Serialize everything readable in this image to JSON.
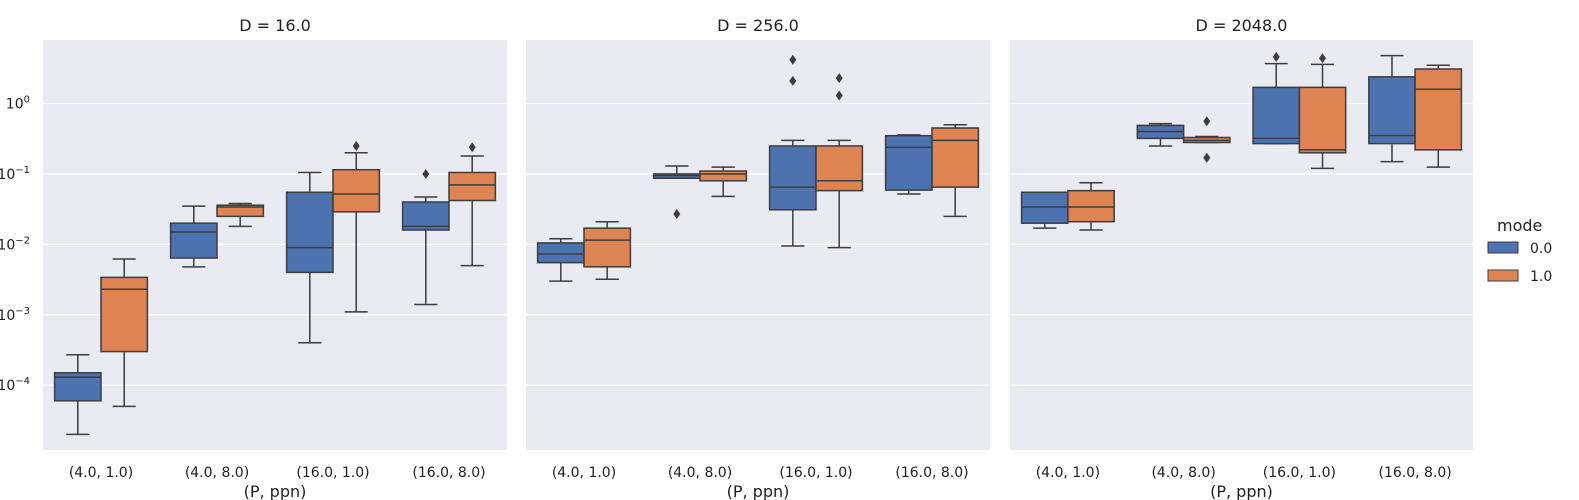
{
  "chart_data": [
    {
      "type": "box",
      "title": "D = 16.0",
      "xlabel": "(P, ppn)",
      "ylabel": "",
      "yscale": "log",
      "ylim": [
        1.2e-05,
        8
      ],
      "grid": true,
      "categories": [
        "(4.0, 1.0)",
        "(4.0, 8.0)",
        "(16.0, 1.0)",
        "(16.0, 8.0)"
      ],
      "yticks": [
        {
          "value": 0.0001,
          "base": "10",
          "exp": "−4"
        },
        {
          "value": 0.001,
          "base": "10",
          "exp": "−3"
        },
        {
          "value": 0.01,
          "base": "10",
          "exp": "−2"
        },
        {
          "value": 0.1,
          "base": "10",
          "exp": "−1"
        },
        {
          "value": 1,
          "base": "10",
          "exp": "0"
        }
      ],
      "series": [
        {
          "name": "0.0",
          "boxes": [
            {
              "lw": 2e-05,
              "q1": 6e-05,
              "med": 0.00013,
              "q3": 0.00015,
              "uw": 0.00027,
              "fliers": []
            },
            {
              "lw": 0.0048,
              "q1": 0.0064,
              "med": 0.015,
              "q3": 0.02,
              "uw": 0.035,
              "fliers": []
            },
            {
              "lw": 0.0004,
              "q1": 0.004,
              "med": 0.009,
              "q3": 0.055,
              "uw": 0.105,
              "fliers": []
            },
            {
              "lw": 0.0014,
              "q1": 0.016,
              "med": 0.018,
              "q3": 0.04,
              "uw": 0.047,
              "fliers": [
                0.1
              ]
            }
          ]
        },
        {
          "name": "1.0",
          "boxes": [
            {
              "lw": 5e-05,
              "q1": 0.0003,
              "med": 0.0023,
              "q3": 0.0034,
              "uw": 0.0062,
              "fliers": []
            },
            {
              "lw": 0.018,
              "q1": 0.025,
              "med": 0.034,
              "q3": 0.036,
              "uw": 0.038,
              "fliers": []
            },
            {
              "lw": 0.0011,
              "q1": 0.029,
              "med": 0.052,
              "q3": 0.115,
              "uw": 0.2,
              "fliers": [
                0.25
              ]
            },
            {
              "lw": 0.005,
              "q1": 0.042,
              "med": 0.07,
              "q3": 0.105,
              "uw": 0.18,
              "fliers": [
                0.24
              ]
            }
          ]
        }
      ]
    },
    {
      "type": "box",
      "title": "D = 256.0",
      "xlabel": "(P, ppn)",
      "ylabel": "",
      "yscale": "log",
      "ylim": [
        1.2e-05,
        8
      ],
      "grid": true,
      "categories": [
        "(4.0, 1.0)",
        "(4.0, 8.0)",
        "(16.0, 1.0)",
        "(16.0, 8.0)"
      ],
      "series": [
        {
          "name": "0.0",
          "boxes": [
            {
              "lw": 0.003,
              "q1": 0.0055,
              "med": 0.0073,
              "q3": 0.0105,
              "uw": 0.012,
              "fliers": []
            },
            {
              "lw": 0.087,
              "q1": 0.087,
              "med": 0.095,
              "q3": 0.1,
              "uw": 0.13,
              "fliers": [
                0.027
              ]
            },
            {
              "lw": 0.0095,
              "q1": 0.031,
              "med": 0.065,
              "q3": 0.25,
              "uw": 0.3,
              "fliers": [
                2.1,
                4.2
              ]
            },
            {
              "lw": 0.052,
              "q1": 0.059,
              "med": 0.24,
              "q3": 0.35,
              "uw": 0.36,
              "fliers": []
            }
          ]
        },
        {
          "name": "1.0",
          "boxes": [
            {
              "lw": 0.0032,
              "q1": 0.0048,
              "med": 0.0115,
              "q3": 0.017,
              "uw": 0.021,
              "fliers": []
            },
            {
              "lw": 0.048,
              "q1": 0.08,
              "med": 0.1,
              "q3": 0.11,
              "uw": 0.125,
              "fliers": []
            },
            {
              "lw": 0.009,
              "q1": 0.058,
              "med": 0.08,
              "q3": 0.25,
              "uw": 0.3,
              "fliers": [
                1.3,
                2.3
              ]
            },
            {
              "lw": 0.025,
              "q1": 0.065,
              "med": 0.3,
              "q3": 0.45,
              "uw": 0.5,
              "fliers": []
            }
          ]
        }
      ]
    },
    {
      "type": "box",
      "title": "D = 2048.0",
      "xlabel": "(P, ppn)",
      "ylabel": "",
      "yscale": "log",
      "ylim": [
        1.2e-05,
        8
      ],
      "grid": true,
      "categories": [
        "(4.0, 1.0)",
        "(4.0, 8.0)",
        "(16.0, 1.0)",
        "(16.0, 8.0)"
      ],
      "series": [
        {
          "name": "0.0",
          "boxes": [
            {
              "lw": 0.017,
              "q1": 0.02,
              "med": 0.034,
              "q3": 0.055,
              "uw": 0.055,
              "fliers": []
            },
            {
              "lw": 0.25,
              "q1": 0.32,
              "med": 0.4,
              "q3": 0.49,
              "uw": 0.52,
              "fliers": []
            },
            {
              "lw": 0.27,
              "q1": 0.27,
              "med": 0.32,
              "q3": 1.7,
              "uw": 3.7,
              "fliers": [
                4.6
              ]
            },
            {
              "lw": 0.15,
              "q1": 0.27,
              "med": 0.35,
              "q3": 2.4,
              "uw": 4.8,
              "fliers": []
            }
          ]
        },
        {
          "name": "1.0",
          "boxes": [
            {
              "lw": 0.016,
              "q1": 0.021,
              "med": 0.034,
              "q3": 0.058,
              "uw": 0.075,
              "fliers": []
            },
            {
              "lw": 0.28,
              "q1": 0.28,
              "med": 0.3,
              "q3": 0.33,
              "uw": 0.34,
              "fliers": [
                0.17,
                0.56
              ]
            },
            {
              "lw": 0.12,
              "q1": 0.2,
              "med": 0.22,
              "q3": 1.7,
              "uw": 3.6,
              "fliers": [
                4.4
              ]
            },
            {
              "lw": 0.125,
              "q1": 0.22,
              "med": 1.6,
              "q3": 3.1,
              "uw": 3.5,
              "fliers": []
            }
          ]
        }
      ]
    }
  ],
  "legend": {
    "title": "mode",
    "placement": "right",
    "items": [
      {
        "label": "0.0",
        "color": "#4c72b0"
      },
      {
        "label": "1.0",
        "color": "#dd8452"
      }
    ]
  },
  "colors": {
    "panel_background": "#eaeaf2",
    "grid": "#ffffff",
    "line": "#3d3d3d"
  }
}
